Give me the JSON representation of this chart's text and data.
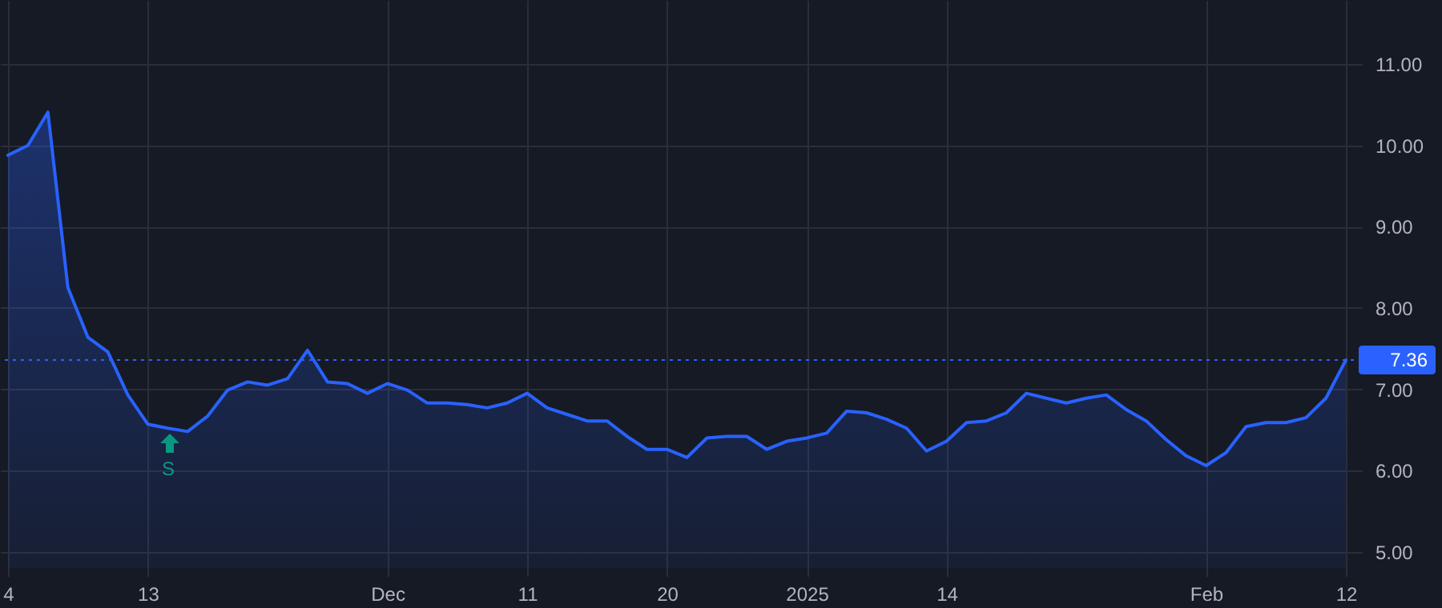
{
  "chart_data": {
    "type": "area",
    "color": "#2962ff",
    "categories": [
      "4",
      null,
      null,
      null,
      null,
      null,
      null,
      "13",
      null,
      null,
      null,
      null,
      null,
      null,
      null,
      null,
      null,
      null,
      null,
      "Dec",
      null,
      null,
      null,
      null,
      null,
      null,
      "11",
      null,
      null,
      null,
      null,
      null,
      null,
      "20",
      null,
      null,
      null,
      null,
      null,
      null,
      "2025",
      null,
      null,
      null,
      null,
      null,
      null,
      "14",
      null,
      null,
      null,
      null,
      null,
      null,
      null,
      null,
      null,
      null,
      null,
      null,
      "Feb",
      null,
      null,
      null,
      null,
      null,
      null,
      "12"
    ],
    "values": [
      9.88,
      10.0,
      10.41,
      8.25,
      7.64,
      7.46,
      6.93,
      6.57,
      6.52,
      6.48,
      6.67,
      6.99,
      7.09,
      7.05,
      7.13,
      7.48,
      7.09,
      7.07,
      6.95,
      7.07,
      6.99,
      6.83,
      6.83,
      6.81,
      6.77,
      6.83,
      6.95,
      6.77,
      6.69,
      6.61,
      6.61,
      6.42,
      6.26,
      6.26,
      6.16,
      6.4,
      6.42,
      6.42,
      6.26,
      6.36,
      6.4,
      6.46,
      6.73,
      6.71,
      6.63,
      6.52,
      6.24,
      6.36,
      6.59,
      6.61,
      6.71,
      6.95,
      6.89,
      6.83,
      6.89,
      6.93,
      6.75,
      6.61,
      6.38,
      6.18,
      6.06,
      6.22,
      6.54,
      6.59,
      6.59,
      6.65,
      6.89,
      7.36
    ],
    "ylim": [
      4.8,
      11.79
    ],
    "yticks": [
      {
        "value": 5,
        "label": "5.00"
      },
      {
        "value": 6,
        "label": "6.00"
      },
      {
        "value": 7,
        "label": "7.00"
      },
      {
        "value": 8,
        "label": "8.00"
      },
      {
        "value": 9,
        "label": "9.00"
      },
      {
        "value": 10,
        "label": "10.00"
      },
      {
        "value": 11,
        "label": "11.00"
      }
    ],
    "grid": true,
    "ref_lines": [
      {
        "axis": "y",
        "value": 7.36,
        "label": "7.36",
        "color": "#2962ff",
        "line_style": "dotted"
      }
    ],
    "annotations": [
      "S"
    ]
  }
}
